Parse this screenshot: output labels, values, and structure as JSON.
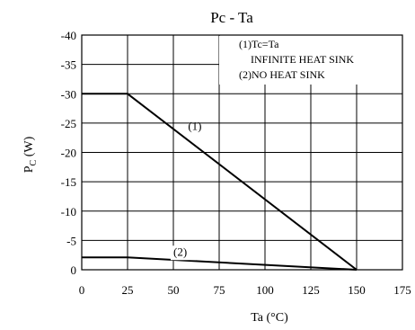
{
  "chart_data": {
    "type": "line",
    "title": "Pc  - Ta",
    "xlabel": "Ta (°C)",
    "ylabel_main": "P",
    "ylabel_sub": "C",
    "ylabel_unit": " (W)",
    "xlim": [
      0,
      175
    ],
    "ylim": [
      0,
      -40
    ],
    "x_ticks": [
      "0",
      "25",
      "50",
      "75",
      "100",
      "125",
      "150",
      "175"
    ],
    "y_ticks": [
      "-40",
      "-35",
      "-30",
      "-25",
      "-20",
      "-15",
      "-10",
      "-5",
      "0"
    ],
    "grid": true,
    "legend_lines": [
      "(1)Tc=Ta",
      "INFINITE HEAT SINK",
      "(2)NO HEAT SINK"
    ],
    "series": [
      {
        "name": "(1)",
        "x": [
          0,
          25,
          150
        ],
        "y": [
          -30,
          -30,
          0
        ]
      },
      {
        "name": "(2)",
        "x": [
          0,
          25,
          150
        ],
        "y": [
          -2.1,
          -2.1,
          0
        ]
      }
    ]
  }
}
